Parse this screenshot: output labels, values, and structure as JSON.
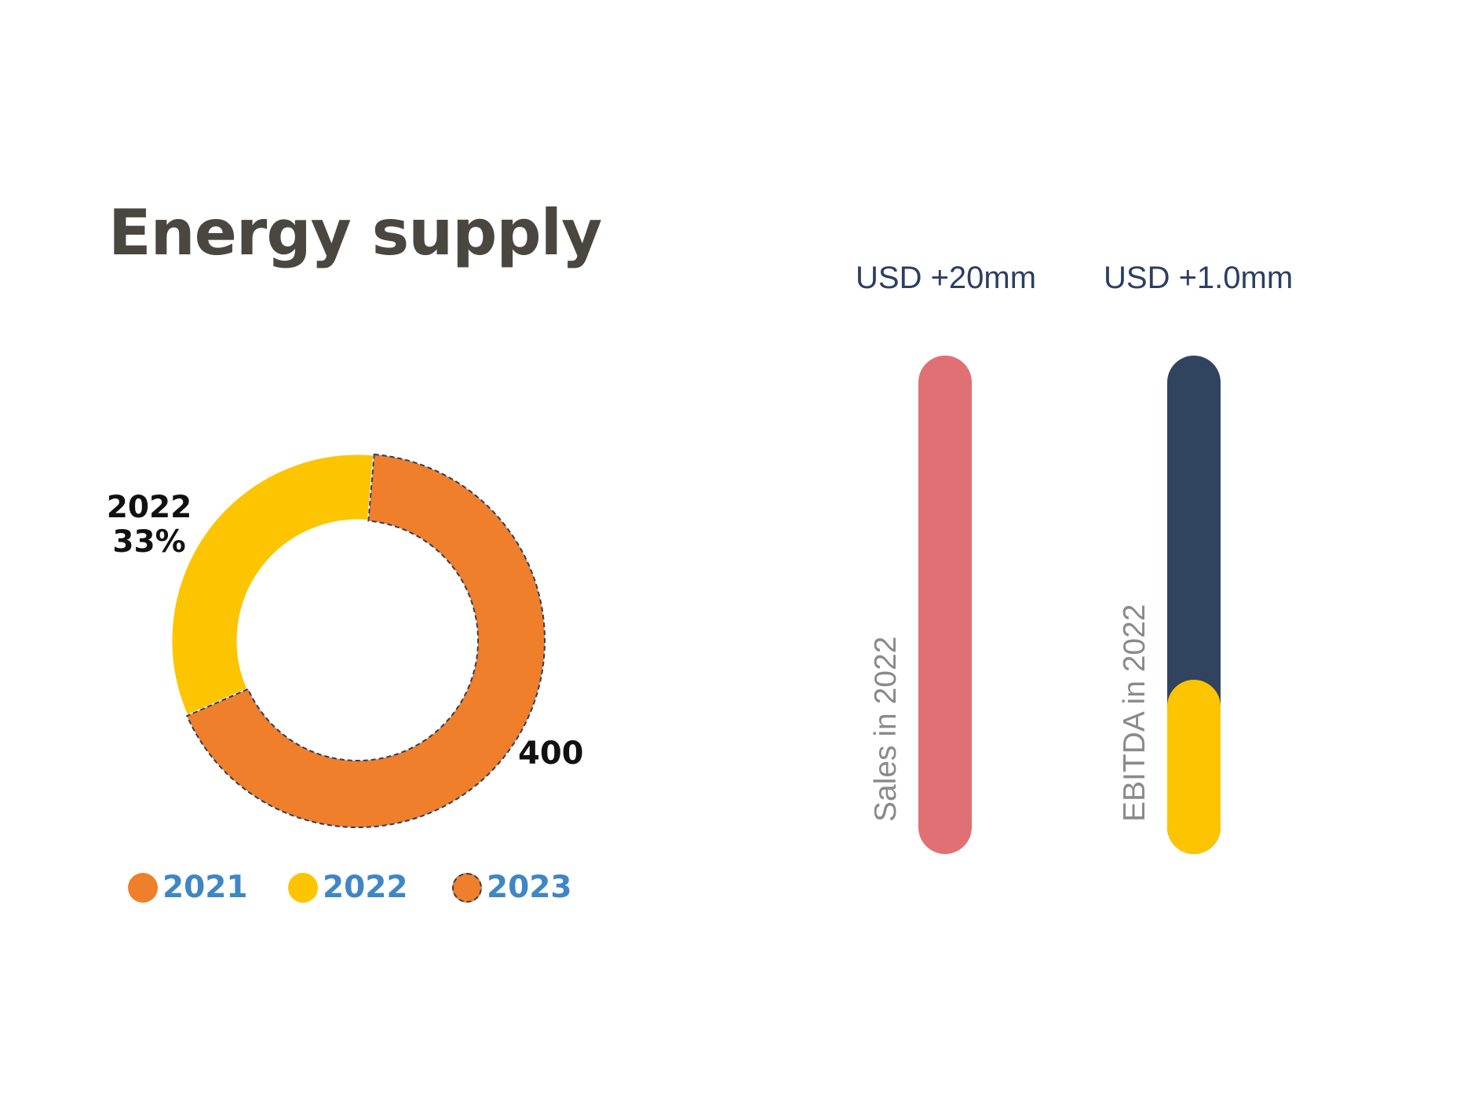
{
  "title": "Energy supply",
  "colors": {
    "orange": "#ef7f2a",
    "yellow": "#fdc400",
    "navy": "#31445f",
    "pink": "#e07073",
    "dash": "#2c3e63"
  },
  "chart_data": [
    {
      "type": "pie",
      "variant": "donut",
      "categories": [
        "2021",
        "2022",
        "2023"
      ],
      "values": [
        0,
        33,
        67
      ],
      "labels": {
        "slice_2022_year": "2022",
        "slice_2022_pct": "33%",
        "slice_2023_value": "400"
      },
      "legend": [
        {
          "name": "2021",
          "style": "solid",
          "color": "#ef7f2a"
        },
        {
          "name": "2022",
          "style": "solid",
          "color": "#fdc400"
        },
        {
          "name": "2023",
          "style": "dashed-outline",
          "color": "#ef7f2a"
        }
      ],
      "legend_position": "bottom"
    },
    {
      "type": "bar",
      "orientation": "vertical",
      "bars": [
        {
          "value_label": "USD +20mm",
          "label": "Sales in 2022",
          "segments": [
            {
              "fraction": 1.0,
              "color": "#e07073"
            }
          ]
        },
        {
          "value_label": "USD +1.0mm",
          "label": "EBITDA in 2022",
          "segments": [
            {
              "fraction": 0.65,
              "color": "#31445f"
            },
            {
              "fraction": 0.35,
              "color": "#fdc400"
            }
          ]
        }
      ]
    }
  ]
}
